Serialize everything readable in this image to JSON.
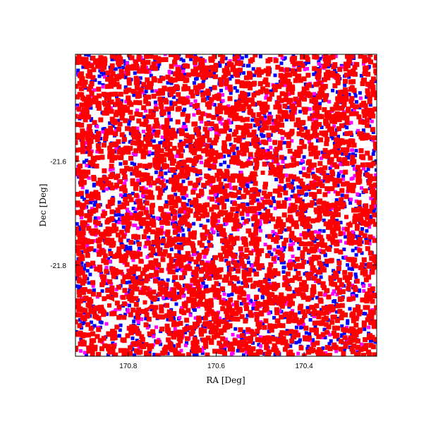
{
  "chart_data": {
    "type": "scatter",
    "title": "",
    "xlabel": "RA [Deg]",
    "ylabel": "Dec [Deg]",
    "xlim": [
      170.92,
      170.235
    ],
    "ylim": [
      -21.975,
      -21.395
    ],
    "x_ticks": [
      170.8,
      170.6,
      170.4
    ],
    "x_tick_labels": [
      "170.8",
      "170.6",
      "170.4"
    ],
    "y_ticks": [
      -21.6,
      -21.8
    ],
    "y_tick_labels": [
      "-21.6",
      "-21.8"
    ],
    "grid": false,
    "legend": "none",
    "marker": "square",
    "series": [
      {
        "color": "#0000ff",
        "points": []
      },
      {
        "color": "#ff00ff",
        "points": []
      },
      {
        "color": "#ff0000",
        "points": []
      }
    ],
    "holes": [
      [
        170.494,
        -21.6225
      ],
      [
        170.762,
        -21.8715
      ],
      [
        170.843,
        -21.8775
      ],
      [
        170.304,
        -21.7075
      ]
    ]
  }
}
